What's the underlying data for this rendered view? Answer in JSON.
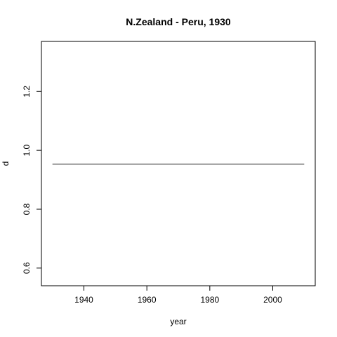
{
  "chart_data": {
    "type": "line",
    "title": "N.Zealand - Peru, 1930",
    "xlabel": "year",
    "ylabel": "d",
    "xlim": [
      1926.5,
      2013.5
    ],
    "ylim": [
      0.54,
      1.37
    ],
    "xticks": [
      1940,
      1960,
      1980,
      2000
    ],
    "yticks": [
      0.6,
      0.8,
      1.0,
      1.2
    ],
    "xtick_labels": [
      "1940",
      "1960",
      "1980",
      "2000"
    ],
    "ytick_labels": [
      "0.6",
      "0.8",
      "1.0",
      "1.2"
    ],
    "grid": false,
    "series": [
      {
        "x": [
          1930,
          2010
        ],
        "y": [
          0.953,
          0.953
        ],
        "color": "#333333"
      }
    ]
  }
}
